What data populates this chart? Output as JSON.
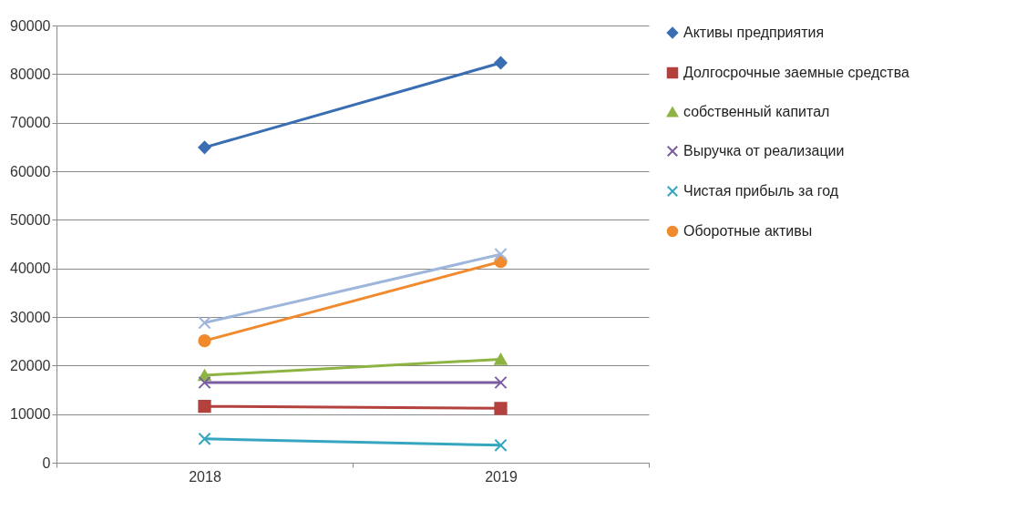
{
  "chart_data": {
    "type": "line",
    "categories": [
      "2018",
      "2019"
    ],
    "ylim": [
      0,
      90000
    ],
    "yticks": [
      0,
      10000,
      20000,
      30000,
      40000,
      50000,
      60000,
      70000,
      80000,
      90000
    ],
    "grid": "y",
    "legend": "right",
    "line_style": "solid",
    "series": [
      {
        "name": "Активы предприятия",
        "color": "#3b6db3",
        "marker": "diamond",
        "values": [
          64900,
          82300
        ]
      },
      {
        "name": "Долгосрочные заемные средства",
        "color": "#b3413d",
        "marker": "square",
        "values": [
          11600,
          11200
        ]
      },
      {
        "name": "собственный капитал",
        "color": "#8db443",
        "marker": "triangle",
        "values": [
          18000,
          21300
        ]
      },
      {
        "name": "Выручка от реализации",
        "color": "#7a5da1",
        "marker": "cross",
        "values": [
          16500,
          16500
        ]
      },
      {
        "name": "Чистая прибыль за год",
        "color": "#36a6c0",
        "marker": "cross",
        "values": [
          4900,
          3600
        ]
      },
      {
        "name": "Оборотные  активы",
        "color": "#f08a2c",
        "marker": "circle",
        "values": [
          25100,
          41400
        ]
      },
      {
        "color": "#9fb6dc",
        "marker": "cross",
        "values": [
          28800,
          42900
        ]
      }
    ]
  }
}
